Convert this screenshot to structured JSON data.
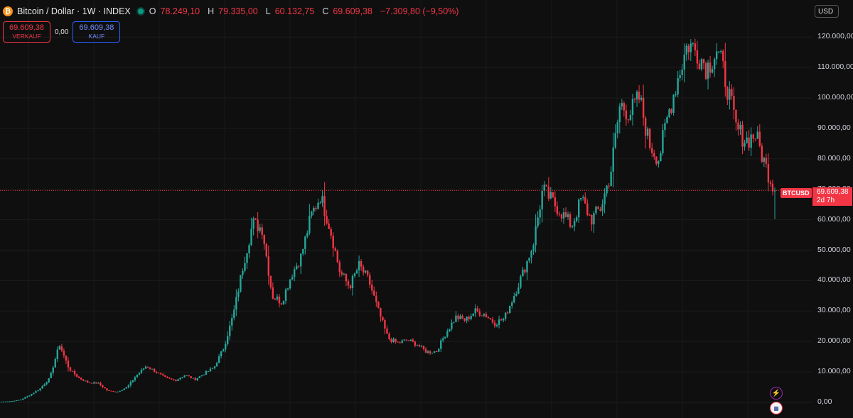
{
  "header": {
    "title": "Bitcoin / Dollar · 1W · INDEX",
    "logo_glyph": "₿",
    "ohlc": [
      {
        "key": "O",
        "value": "78.249,10"
      },
      {
        "key": "H",
        "value": "79.335,00"
      },
      {
        "key": "L",
        "value": "60.132,75"
      },
      {
        "key": "C",
        "value": "69.609,38"
      }
    ],
    "change": "−7.309,80 (−9,50%)"
  },
  "trade": {
    "sell_price": "69.609,38",
    "sell_label": "VERKAUF",
    "spread": "0,00",
    "buy_price": "69.609,38",
    "buy_label": "KAUF"
  },
  "currency": "USD",
  "last_price": {
    "symbol": "BTCUSD",
    "price": "69.609,38",
    "countdown": "2d 7h"
  },
  "icons": [
    "bitcoin-logo-icon",
    "lightning-icon",
    "us-flag-icon"
  ],
  "colors": {
    "up": "#26a69a",
    "down": "#f23645",
    "background": "#0f0f0f",
    "grid": "#1e1e1e"
  },
  "chart_data": {
    "type": "candlestick",
    "interval": "1W",
    "symbol": "BTCUSD",
    "ylim": [
      0,
      125000
    ],
    "y_ticks": [
      "120.000,00",
      "110.000,00",
      "100.000,00",
      "90.000,00",
      "80.000,00",
      "70.000,00",
      "60.000,00",
      "50.000,00",
      "40.000,00",
      "30.000,00",
      "20.000,00",
      "10.000,00",
      "0,00"
    ],
    "y_tick_values": [
      120000,
      110000,
      100000,
      90000,
      80000,
      70000,
      60000,
      50000,
      40000,
      30000,
      20000,
      10000,
      0
    ],
    "last_close": 69609.38,
    "approx_weekly_close_path": [
      200,
      400,
      900,
      2500,
      4500,
      8000,
      19000,
      11000,
      8000,
      6500,
      6300,
      3800,
      3500,
      5000,
      9000,
      12000,
      10000,
      8000,
      7200,
      9000,
      7500,
      9500,
      11500,
      18000,
      29000,
      45000,
      59000,
      57000,
      35000,
      33000,
      42000,
      48000,
      61000,
      68000,
      57000,
      43000,
      38000,
      45000,
      40000,
      30000,
      21000,
      19500,
      20500,
      19000,
      16500,
      16800,
      23000,
      28000,
      27000,
      30000,
      29000,
      26000,
      27500,
      35000,
      43000,
      52000,
      70000,
      66000,
      62000,
      58000,
      67000,
      60000,
      64000,
      75000,
      98000,
      95000,
      100000,
      85000,
      80000,
      95000,
      107000,
      118000,
      115000,
      110000,
      116000,
      105000,
      90000,
      86000,
      88000,
      78000,
      69609
    ]
  }
}
